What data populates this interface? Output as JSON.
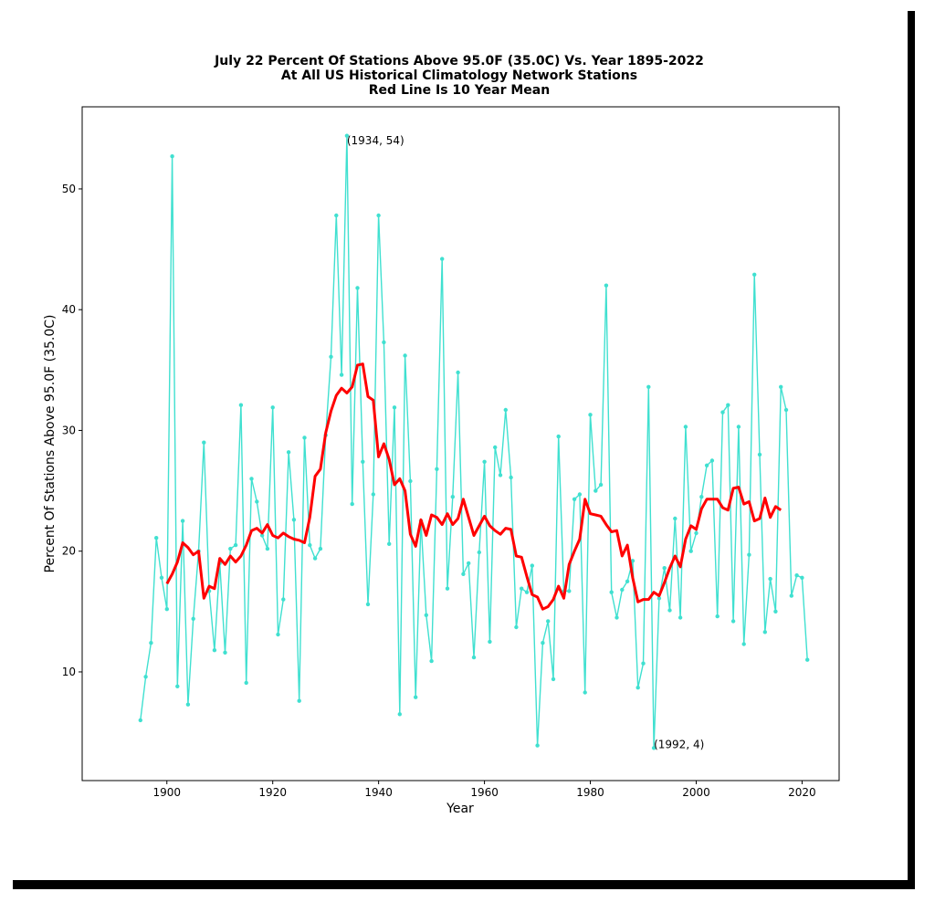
{
  "chart_data": {
    "type": "line",
    "title": [
      "July 22 Percent Of Stations Above 95.0F (35.0C) Vs. Year 1895-2022",
      "At All US Historical Climatology Network Stations",
      "Red Line Is 10 Year Mean"
    ],
    "xlabel": "Year",
    "ylabel": "Percent Of Stations Above 95.0F (35.0C)",
    "xlim": [
      1884,
      2027
    ],
    "ylim": [
      1,
      56.8
    ],
    "xticks": [
      1900,
      1920,
      1940,
      1960,
      1980,
      2000,
      2020
    ],
    "yticks": [
      10,
      20,
      30,
      40,
      50
    ],
    "grid": false,
    "annotations": [
      {
        "text": "(1934, 54)",
        "x": 1934,
        "y": 54
      },
      {
        "text": "(1992, 4)",
        "x": 1992,
        "y": 4
      }
    ],
    "series": [
      {
        "color": "#40e0d0",
        "style": "line-markers",
        "x": [
          1895,
          1896,
          1897,
          1898,
          1899,
          1900,
          1901,
          1902,
          1903,
          1904,
          1905,
          1906,
          1907,
          1908,
          1909,
          1910,
          1911,
          1912,
          1913,
          1914,
          1915,
          1916,
          1917,
          1918,
          1919,
          1920,
          1921,
          1922,
          1923,
          1924,
          1925,
          1926,
          1927,
          1928,
          1929,
          1930,
          1931,
          1932,
          1933,
          1934,
          1935,
          1936,
          1937,
          1938,
          1939,
          1940,
          1941,
          1942,
          1943,
          1944,
          1945,
          1946,
          1947,
          1948,
          1949,
          1950,
          1951,
          1952,
          1953,
          1954,
          1955,
          1956,
          1957,
          1958,
          1959,
          1960,
          1961,
          1962,
          1963,
          1964,
          1965,
          1966,
          1967,
          1968,
          1969,
          1970,
          1971,
          1972,
          1973,
          1974,
          1975,
          1976,
          1977,
          1978,
          1979,
          1980,
          1981,
          1982,
          1983,
          1984,
          1985,
          1986,
          1987,
          1988,
          1989,
          1990,
          1991,
          1992,
          1993,
          1994,
          1995,
          1996,
          1997,
          1998,
          1999,
          2000,
          2001,
          2002,
          2003,
          2004,
          2005,
          2006,
          2007,
          2008,
          2009,
          2010,
          2011,
          2012,
          2013,
          2014,
          2015,
          2016,
          2017,
          2018,
          2019,
          2020,
          2021
        ],
        "y": [
          6.0,
          9.6,
          12.4,
          21.1,
          17.8,
          15.2,
          52.7,
          8.8,
          22.5,
          7.3,
          14.4,
          20.0,
          29.0,
          16.7,
          11.8,
          19.0,
          11.6,
          20.2,
          20.5,
          32.1,
          9.1,
          26.0,
          24.1,
          21.3,
          20.2,
          31.9,
          13.1,
          16.0,
          28.2,
          22.6,
          7.6,
          29.4,
          20.5,
          19.4,
          20.2,
          29.6,
          36.1,
          47.8,
          34.6,
          54.4,
          23.9,
          41.8,
          27.4,
          15.6,
          24.7,
          47.8,
          37.3,
          20.6,
          31.9,
          6.5,
          36.2,
          25.8,
          7.9,
          22.5,
          14.7,
          10.9,
          26.8,
          44.2,
          16.9,
          24.5,
          34.8,
          18.1,
          19.0,
          11.2,
          19.9,
          27.4,
          12.5,
          28.6,
          26.3,
          31.7,
          26.1,
          13.7,
          16.9,
          16.6,
          18.8,
          3.9,
          12.4,
          14.2,
          9.4,
          29.5,
          16.7,
          16.7,
          24.3,
          24.7,
          8.3,
          31.3,
          25.0,
          25.5,
          42.0,
          16.6,
          14.5,
          16.8,
          17.5,
          19.2,
          8.7,
          10.7,
          33.6,
          3.7,
          16.1,
          18.6,
          15.1,
          22.7,
          14.5,
          30.3,
          20.0,
          21.5,
          24.5,
          27.1,
          27.5,
          14.6,
          31.5,
          32.1,
          14.2,
          30.3,
          12.3,
          19.7,
          42.9,
          28.0,
          13.3,
          17.7,
          15.0,
          33.6,
          31.7,
          16.3,
          18.0,
          17.8,
          11.0
        ]
      },
      {
        "color": "#ff0000",
        "style": "line",
        "x": [
          1900,
          1901,
          1902,
          1903,
          1904,
          1905,
          1906,
          1907,
          1908,
          1909,
          1910,
          1911,
          1912,
          1913,
          1914,
          1915,
          1916,
          1917,
          1918,
          1919,
          1920,
          1921,
          1922,
          1923,
          1924,
          1925,
          1926,
          1927,
          1928,
          1929,
          1930,
          1931,
          1932,
          1933,
          1934,
          1935,
          1936,
          1937,
          1938,
          1939,
          1940,
          1941,
          1942,
          1943,
          1944,
          1945,
          1946,
          1947,
          1948,
          1949,
          1950,
          1951,
          1952,
          1953,
          1954,
          1955,
          1956,
          1957,
          1958,
          1959,
          1960,
          1961,
          1962,
          1963,
          1964,
          1965,
          1966,
          1967,
          1968,
          1969,
          1970,
          1971,
          1972,
          1973,
          1974,
          1975,
          1976,
          1977,
          1978,
          1979,
          1980,
          1981,
          1982,
          1983,
          1984,
          1985,
          1986,
          1987,
          1988,
          1989,
          1990,
          1991,
          1992,
          1993,
          1994,
          1995,
          1996,
          1997,
          1998,
          1999,
          2000,
          2001,
          2002,
          2003,
          2004,
          2005,
          2006,
          2007,
          2008,
          2009,
          2010,
          2011,
          2012,
          2013,
          2014,
          2015,
          2016
        ],
        "y": [
          17.3,
          18.1,
          19.1,
          20.7,
          20.3,
          19.7,
          20.0,
          16.1,
          17.1,
          16.9,
          19.4,
          18.9,
          19.6,
          19.1,
          19.6,
          20.5,
          21.7,
          21.9,
          21.5,
          22.2,
          21.3,
          21.1,
          21.5,
          21.2,
          21.0,
          20.9,
          20.7,
          22.8,
          26.2,
          26.8,
          29.8,
          31.6,
          32.9,
          33.5,
          33.1,
          33.6,
          35.4,
          35.5,
          32.8,
          32.5,
          27.8,
          28.9,
          27.6,
          25.5,
          26.0,
          25.0,
          21.4,
          20.4,
          22.6,
          21.3,
          23.0,
          22.8,
          22.2,
          23.1,
          22.2,
          22.7,
          24.3,
          22.8,
          21.3,
          22.1,
          22.9,
          22.1,
          21.7,
          21.4,
          21.9,
          21.8,
          19.6,
          19.5,
          17.9,
          16.4,
          16.2,
          15.2,
          15.4,
          16.0,
          17.1,
          16.1,
          18.9,
          20.0,
          21.0,
          24.3,
          23.1,
          23.0,
          22.9,
          22.2,
          21.6,
          21.7,
          19.6,
          20.5,
          17.8,
          15.8,
          16.0,
          16.0,
          16.6,
          16.3,
          17.4,
          18.6,
          19.6,
          18.7,
          21.0,
          22.1,
          21.8,
          23.5,
          24.3,
          24.3,
          24.3,
          23.6,
          23.4,
          25.2,
          25.3,
          23.9,
          24.1,
          22.5,
          22.7,
          24.4,
          22.8,
          23.7,
          23.4
        ]
      }
    ]
  }
}
